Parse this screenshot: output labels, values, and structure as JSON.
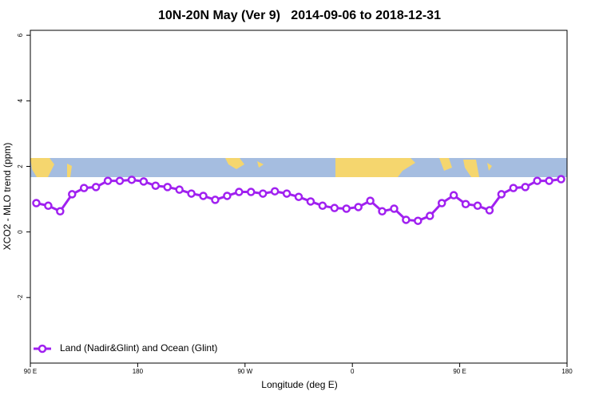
{
  "chart_data": {
    "type": "line",
    "title": "10N-20N May (Ver 9)   2014-09-06 to 2018-12-31",
    "x_label": "Longitude (deg E)",
    "y_label": "XCO2 - MLO trend (ppm)",
    "x": [
      95,
      105,
      115,
      125,
      135,
      145,
      155,
      165,
      175,
      185,
      195,
      205,
      215,
      225,
      235,
      245,
      255,
      265,
      275,
      285,
      295,
      305,
      315,
      325,
      335,
      345,
      355,
      365,
      375,
      385,
      395,
      405,
      415,
      425,
      435,
      445,
      455,
      465,
      475,
      485,
      495,
      505,
      515,
      525,
      535
    ],
    "series": [
      {
        "name": "Land (Nadir&Glint) and Ocean (Glint)",
        "color": "#a020f0",
        "values": [
          0.88,
          0.8,
          0.63,
          1.15,
          1.34,
          1.37,
          1.56,
          1.56,
          1.59,
          1.54,
          1.41,
          1.37,
          1.29,
          1.17,
          1.1,
          0.98,
          1.1,
          1.22,
          1.22,
          1.17,
          1.24,
          1.17,
          1.07,
          0.93,
          0.8,
          0.73,
          0.71,
          0.76,
          0.95,
          0.63,
          0.71,
          0.37,
          0.34,
          0.49,
          0.88,
          1.12,
          0.85,
          0.8,
          0.66,
          1.15,
          1.34,
          1.37,
          1.56,
          1.56,
          1.61
        ]
      }
    ],
    "xlim": [
      90,
      540
    ],
    "xticks": [
      {
        "value": 90,
        "label": "90 E"
      },
      {
        "value": 180,
        "label": "180"
      },
      {
        "value": 270,
        "label": "90 W"
      },
      {
        "value": 360,
        "label": "0"
      },
      {
        "value": 450,
        "label": "90 E"
      },
      {
        "value": 540,
        "label": "180"
      }
    ],
    "ylim": [
      -4,
      6.15
    ],
    "yticks": [
      -2,
      0,
      2,
      4,
      6
    ],
    "legend": "bottom-left"
  }
}
